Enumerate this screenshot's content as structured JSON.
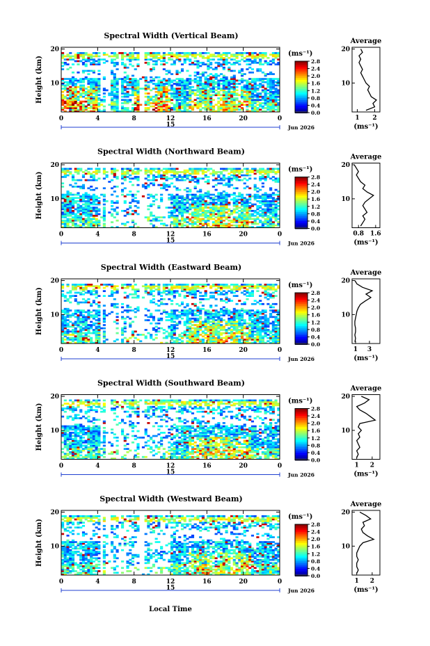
{
  "figure": {
    "xlabel": "Local Time",
    "date_label": "Jun 2026",
    "day_label": "15",
    "average_title": "Average",
    "colorbar_unit": "(ms⁻¹)"
  },
  "chart_data": [
    {
      "type": "heatmap",
      "title": "Spectral Width (Vertical Beam)",
      "ylabel": "Height (km)",
      "x_ticks": [
        "0",
        "4",
        "8",
        "12",
        "16",
        "20",
        "0"
      ],
      "y_ticks": [
        "20",
        "10"
      ],
      "xlim": [
        0,
        24
      ],
      "ylim": [
        1.5,
        20.5
      ],
      "colorbar_ticks": [
        "2.8",
        "2.4",
        "2.0",
        "1.6",
        "1.2",
        "0.8",
        "0.4",
        "0.0"
      ],
      "colorbar_range": [
        0,
        2.8
      ],
      "grid": false,
      "average_profile": {
        "xlabel": "(ms⁻¹)",
        "x_ticks": [
          "1",
          "2"
        ],
        "xlim": [
          0.7,
          2.3
        ],
        "y_ticks": [
          "20",
          "10"
        ],
        "heights": [
          2,
          3,
          4,
          5,
          6,
          7,
          8,
          9,
          10,
          11,
          12,
          13,
          14,
          15,
          16,
          17,
          18,
          19,
          20
        ],
        "values": [
          1.5,
          2.0,
          1.9,
          2.1,
          1.8,
          1.7,
          1.6,
          1.7,
          1.5,
          1.4,
          1.3,
          1.2,
          1.3,
          1.2,
          1.1,
          1.2,
          1.1,
          1.3,
          1.2
        ]
      }
    },
    {
      "type": "heatmap",
      "title": "Spectral Width (Northward Beam)",
      "ylabel": "Height (km)",
      "x_ticks": [
        "0",
        "4",
        "8",
        "12",
        "16",
        "20",
        "0"
      ],
      "y_ticks": [
        "20",
        "10"
      ],
      "xlim": [
        0,
        24
      ],
      "ylim": [
        1.5,
        20.5
      ],
      "colorbar_ticks": [
        "2.8",
        "2.4",
        "2.0",
        "1.6",
        "1.2",
        "0.8",
        "0.4",
        "0.0"
      ],
      "colorbar_range": [
        0,
        2.8
      ],
      "grid": false,
      "average_profile": {
        "xlabel": "(ms⁻¹)",
        "x_ticks": [
          "0.8",
          "1.6"
        ],
        "xlim": [
          0.5,
          1.8
        ],
        "y_ticks": [
          "20",
          "10"
        ],
        "heights": [
          2,
          3,
          4,
          5,
          6,
          7,
          8,
          9,
          10,
          11,
          12,
          13,
          14,
          15,
          16,
          17,
          18,
          19,
          20
        ],
        "values": [
          0.9,
          1.0,
          1.1,
          1.0,
          1.2,
          1.1,
          1.0,
          1.1,
          1.3,
          1.5,
          1.2,
          1.0,
          1.1,
          0.9,
          0.8,
          0.7,
          0.8,
          0.7,
          0.6
        ]
      }
    },
    {
      "type": "heatmap",
      "title": "Spectral Width (Eastward Beam)",
      "ylabel": "Height (km)",
      "x_ticks": [
        "0",
        "4",
        "8",
        "12",
        "16",
        "20",
        "0"
      ],
      "y_ticks": [
        "20",
        "10"
      ],
      "xlim": [
        0,
        24
      ],
      "ylim": [
        1.5,
        20.5
      ],
      "colorbar_ticks": [
        "2.8",
        "2.4",
        "2.0",
        "1.6",
        "1.2",
        "0.8",
        "0.4",
        "0.0"
      ],
      "colorbar_range": [
        0,
        2.8
      ],
      "grid": false,
      "average_profile": {
        "xlabel": "(ms⁻¹)",
        "x_ticks": [
          "1",
          "3"
        ],
        "xlim": [
          0.5,
          4.5
        ],
        "y_ticks": [
          "20",
          "10"
        ],
        "heights": [
          2,
          3,
          4,
          5,
          6,
          7,
          8,
          9,
          10,
          11,
          12,
          13,
          14,
          15,
          16,
          17,
          18,
          19,
          20
        ],
        "values": [
          0.9,
          1.0,
          0.9,
          1.0,
          1.0,
          0.9,
          0.9,
          1.0,
          1.1,
          1.2,
          1.4,
          1.7,
          2.4,
          3.2,
          2.5,
          3.4,
          2.0,
          1.2,
          0.9
        ]
      }
    },
    {
      "type": "heatmap",
      "title": "Spectral Width (Southward Beam)",
      "ylabel": "Height (km)",
      "x_ticks": [
        "0",
        "4",
        "8",
        "12",
        "16",
        "20",
        "0"
      ],
      "y_ticks": [
        "20",
        "10"
      ],
      "xlim": [
        0,
        24
      ],
      "ylim": [
        1.5,
        20.5
      ],
      "colorbar_ticks": [
        "2.8",
        "2.4",
        "2.0",
        "1.6",
        "1.2",
        "0.8",
        "0.4",
        "0.0"
      ],
      "colorbar_range": [
        0,
        2.8
      ],
      "grid": false,
      "average_profile": {
        "xlabel": "(ms⁻¹)",
        "x_ticks": [
          "1",
          "2"
        ],
        "xlim": [
          0.7,
          2.5
        ],
        "y_ticks": [
          "20",
          "10"
        ],
        "heights": [
          2,
          3,
          4,
          5,
          6,
          7,
          8,
          9,
          10,
          11,
          12,
          13,
          14,
          15,
          16,
          17,
          18,
          19,
          20
        ],
        "values": [
          1.0,
          1.1,
          1.0,
          1.2,
          1.1,
          1.0,
          1.2,
          1.1,
          1.3,
          1.1,
          1.2,
          2.2,
          1.9,
          1.6,
          1.2,
          1.0,
          1.5,
          1.8,
          1.3
        ]
      }
    },
    {
      "type": "heatmap",
      "title": "Spectral Width (Westward Beam)",
      "ylabel": "Height (km)",
      "x_ticks": [
        "0",
        "4",
        "8",
        "12",
        "16",
        "20",
        "0"
      ],
      "y_ticks": [
        "20",
        "10"
      ],
      "xlim": [
        0,
        24
      ],
      "ylim": [
        1.5,
        20.5
      ],
      "colorbar_ticks": [
        "2.8",
        "2.4",
        "2.0",
        "1.6",
        "1.2",
        "0.8",
        "0.4",
        "0.0"
      ],
      "colorbar_range": [
        0,
        2.8
      ],
      "grid": false,
      "average_profile": {
        "xlabel": "(ms⁻¹)",
        "x_ticks": [
          "1",
          "2"
        ],
        "xlim": [
          0.7,
          2.5
        ],
        "y_ticks": [
          "20",
          "10"
        ],
        "heights": [
          2,
          3,
          4,
          5,
          6,
          7,
          8,
          9,
          10,
          11,
          12,
          13,
          14,
          15,
          16,
          17,
          18,
          19,
          20
        ],
        "values": [
          1.0,
          1.1,
          1.0,
          1.0,
          1.1,
          1.0,
          1.0,
          1.1,
          1.2,
          1.4,
          2.1,
          1.7,
          1.4,
          1.3,
          1.5,
          1.4,
          1.9,
          1.6,
          1.2
        ]
      }
    }
  ]
}
